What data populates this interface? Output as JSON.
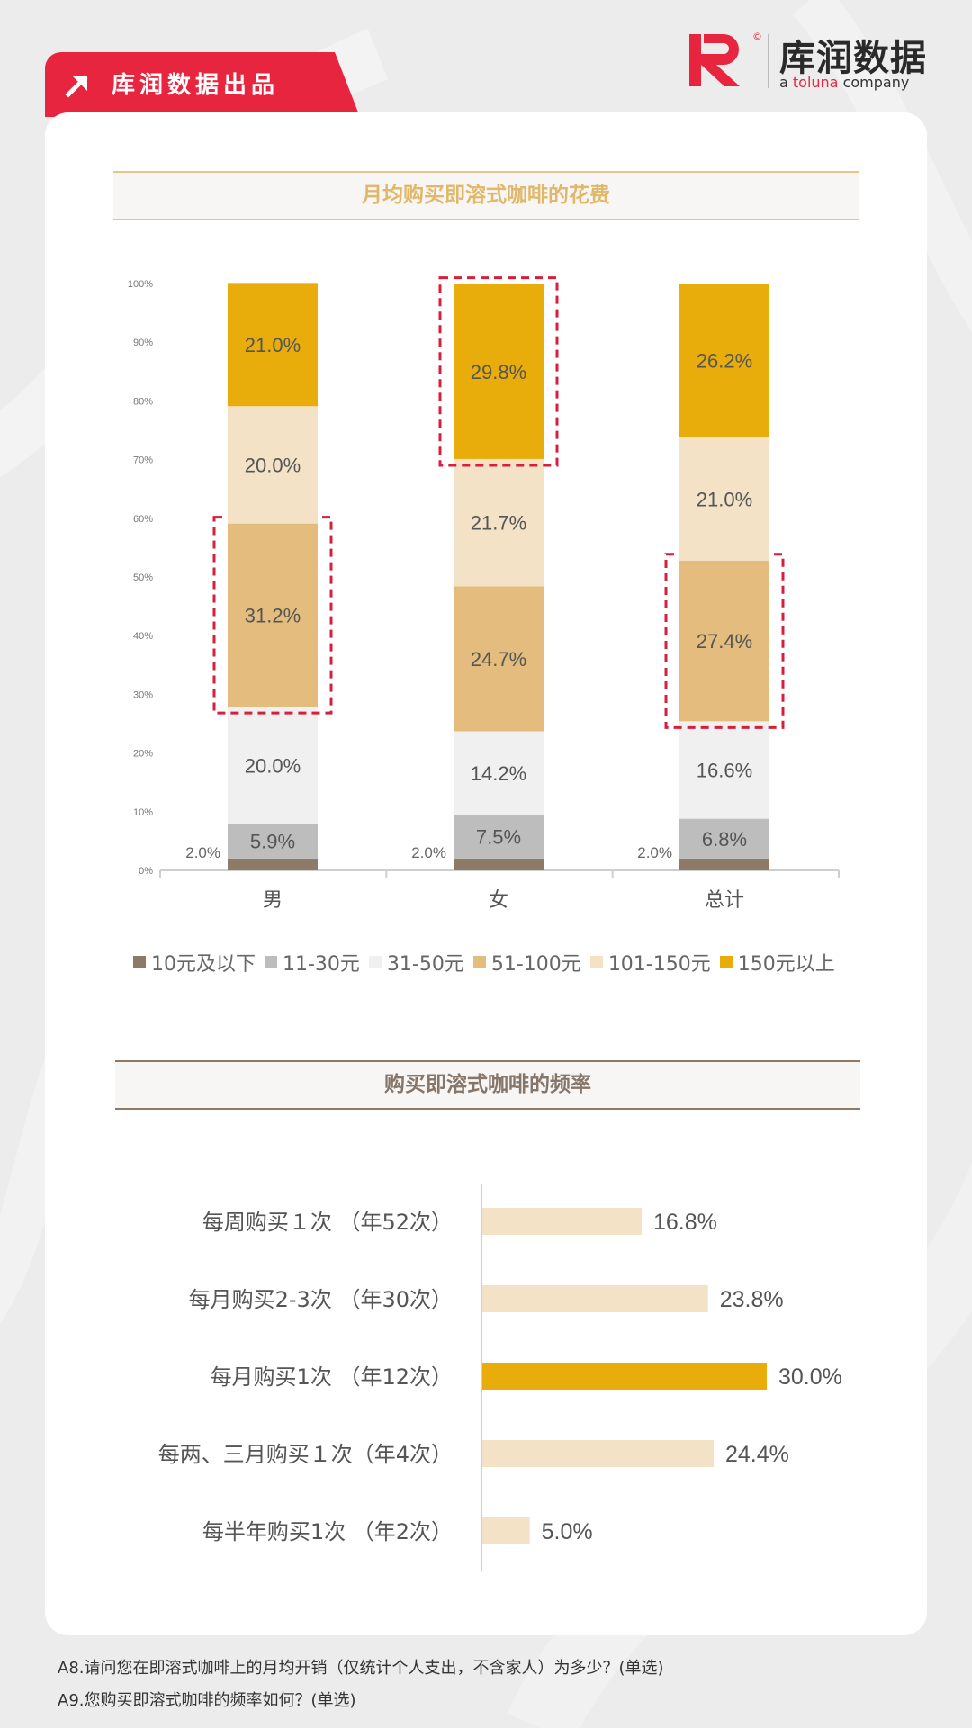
{
  "header": {
    "tab_text": "库润数据出品",
    "logo_cn": "库润数据",
    "logo_en_prefix": "a ",
    "logo_en_brand": "toluna",
    "logo_en_suffix": " company",
    "logo_copyright": "©"
  },
  "colors": {
    "brand_red": "#e8253f",
    "dark_brown": "#8d7b68",
    "gray": "#bdbdbd",
    "light_gray": "#f0f0f0",
    "tan": "#e3bc7e",
    "cream": "#f3e2c6",
    "gold": "#e8ad0b",
    "highlight": "#d61f3d"
  },
  "chart_data": [
    {
      "type": "bar",
      "stacked": true,
      "title": "月均购买即溶式咖啡的花费",
      "categories": [
        "男",
        "女",
        "总计"
      ],
      "yticks": [
        "0%",
        "10%",
        "20%",
        "30%",
        "40%",
        "50%",
        "60%",
        "70%",
        "80%",
        "90%",
        "100%"
      ],
      "ylim": [
        0,
        100
      ],
      "series": [
        {
          "name": "10元及以下",
          "values": [
            2.0,
            2.0,
            2.0
          ],
          "labels": [
            "2.0%",
            "2.0%",
            "2.0%"
          ],
          "color": "#8d7b68",
          "label_outside": true
        },
        {
          "name": "11-30元",
          "values": [
            5.9,
            7.5,
            6.8
          ],
          "labels": [
            "5.9%",
            "7.5%",
            "6.8%"
          ],
          "color": "#bdbdbd"
        },
        {
          "name": "31-50元",
          "values": [
            20.0,
            14.2,
            16.6
          ],
          "labels": [
            "20.0%",
            "14.2%",
            "16.6%"
          ],
          "color": "#f0f0f0"
        },
        {
          "name": "51-100元",
          "values": [
            31.2,
            24.7,
            27.4
          ],
          "labels": [
            "31.2%",
            "24.7%",
            "27.4%"
          ],
          "color": "#e3bc7e"
        },
        {
          "name": "101-150元",
          "values": [
            20.0,
            21.7,
            21.0
          ],
          "labels": [
            "20.0%",
            "21.7%",
            "21.0%"
          ],
          "color": "#f3e2c6"
        },
        {
          "name": "150元以上",
          "values": [
            21.0,
            29.8,
            26.2
          ],
          "labels": [
            "21.0%",
            "29.8%",
            "26.2%"
          ],
          "color": "#e8ad0b"
        }
      ],
      "highlights": [
        {
          "category": 0,
          "series": 3
        },
        {
          "category": 1,
          "series": 5
        },
        {
          "category": 2,
          "series": 3
        }
      ],
      "legend_position": "bottom"
    },
    {
      "type": "bar",
      "orientation": "horizontal",
      "title": "购买即溶式咖啡的频率",
      "categories": [
        "每周购买１次 （年52次）",
        "每月购买2-3次 （年30次）",
        "每月购买1次 （年12次）",
        "每两、三月购买１次（年4次）",
        "每半年购买1次 （年2次）"
      ],
      "values": [
        16.8,
        23.8,
        30.0,
        24.4,
        5.0
      ],
      "labels": [
        "16.8%",
        "23.8%",
        "30.0%",
        "24.4%",
        "5.0%"
      ],
      "colors": [
        "#f3e2c6",
        "#f3e2c6",
        "#e8ad0b",
        "#f3e2c6",
        "#f3e2c6"
      ],
      "xlim": [
        0,
        30
      ]
    }
  ],
  "footnotes": [
    "A8.请问您在即溶式咖啡上的月均开销（仅统计个人支出，不含家人）为多少？(单选)",
    "A9.您购买即溶式咖啡的频率如何？(单选)"
  ]
}
